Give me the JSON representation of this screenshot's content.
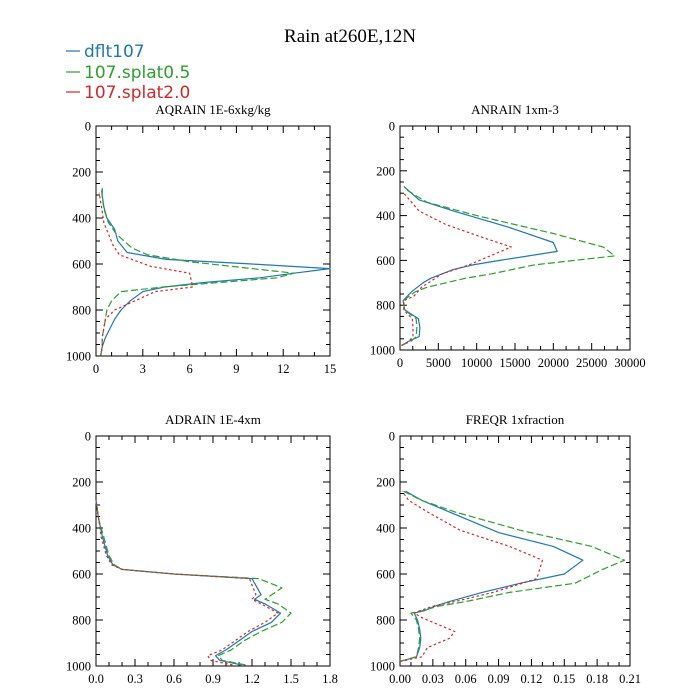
{
  "figure_title": "Rain at260E,12N",
  "legend": [
    {
      "label": "dflt107",
      "color": "#1f77b4",
      "dash": "solid"
    },
    {
      "label": "107.splat0.5",
      "color": "#2ca02c",
      "dash": "dashed"
    },
    {
      "label": "107.splat2.0",
      "color": "#d62728",
      "dash": "dotted"
    }
  ],
  "chart_data": [
    {
      "type": "line",
      "title": "AQRAIN 1E-6xkg/kg",
      "xlabel": "",
      "ylabel": "",
      "xlim": [
        0,
        15
      ],
      "ylim": [
        1000,
        0
      ],
      "xticks": [
        "0",
        "3",
        "6",
        "9",
        "12",
        "15"
      ],
      "xtick_values": [
        0,
        3,
        6,
        9,
        12,
        15
      ],
      "yticks": [
        "0",
        "200",
        "400",
        "600",
        "800",
        "1000"
      ],
      "ytick_values": [
        0,
        200,
        400,
        600,
        800,
        1000
      ],
      "series": [
        {
          "name": "dflt107",
          "x": [
            0.3,
            0.4,
            0.6,
            0.9,
            1.2,
            1.6,
            2.2,
            3.0,
            4.4,
            7.0,
            10.5,
            12.7,
            15.0,
            10.0,
            4.5,
            2.0,
            1.4,
            1.2,
            0.7,
            0.5,
            0.4,
            0.4
          ],
          "y": [
            1000,
            960,
            920,
            880,
            840,
            800,
            760,
            720,
            700,
            680,
            660,
            640,
            620,
            600,
            580,
            550,
            500,
            450,
            400,
            350,
            300,
            270
          ]
        },
        {
          "name": "107.splat0.5",
          "x": [
            0.3,
            0.4,
            0.4,
            0.5,
            0.6,
            0.7,
            1.0,
            1.6,
            4.3,
            8.0,
            11.6,
            12.7,
            10.0,
            6.0,
            3.3,
            2.3,
            1.3,
            0.8,
            0.5,
            0.35
          ],
          "y": [
            1000,
            960,
            920,
            880,
            840,
            800,
            760,
            720,
            700,
            680,
            660,
            640,
            620,
            590,
            560,
            530,
            470,
            420,
            360,
            280
          ]
        },
        {
          "name": "107.splat2.0",
          "x": [
            0.3,
            0.4,
            0.4,
            0.5,
            0.6,
            1.2,
            2.5,
            3.8,
            6.2,
            6.0,
            3.5,
            1.5,
            1.1,
            0.8,
            0.5,
            0.4,
            0.2
          ],
          "y": [
            1000,
            960,
            920,
            880,
            840,
            800,
            760,
            720,
            700,
            640,
            610,
            560,
            520,
            470,
            420,
            370,
            290
          ]
        }
      ]
    },
    {
      "type": "line",
      "title": "ANRAIN 1xm-3",
      "xlabel": "",
      "ylabel": "",
      "xlim": [
        0,
        30000
      ],
      "ylim": [
        1000,
        0
      ],
      "xticks": [
        "0",
        "5000",
        "10000",
        "15000",
        "20000",
        "25000",
        "30000"
      ],
      "xtick_values": [
        0,
        5000,
        10000,
        15000,
        20000,
        25000,
        30000
      ],
      "yticks": [
        "0",
        "200",
        "400",
        "600",
        "800",
        "1000"
      ],
      "ytick_values": [
        0,
        200,
        400,
        600,
        800,
        1000
      ],
      "series": [
        {
          "name": "dflt107",
          "x": [
            200,
            1200,
            2500,
            2600,
            2400,
            1500,
            600,
            400,
            1500,
            3000,
            4000,
            5500,
            7000,
            9500,
            13000,
            20500,
            20000,
            14000,
            7000,
            2500,
            500
          ],
          "y": [
            980,
            960,
            940,
            900,
            860,
            840,
            820,
            780,
            740,
            700,
            680,
            660,
            640,
            620,
            600,
            560,
            520,
            450,
            380,
            330,
            270
          ]
        },
        {
          "name": "107.splat0.5",
          "x": [
            200,
            1500,
            2100,
            2200,
            2100,
            1300,
            600,
            400,
            2000,
            3500,
            6000,
            8500,
            12000,
            17500,
            28000,
            26500,
            20000,
            10000,
            3500,
            600
          ],
          "y": [
            980,
            960,
            940,
            900,
            860,
            840,
            820,
            780,
            740,
            720,
            700,
            680,
            660,
            620,
            580,
            540,
            480,
            400,
            340,
            280
          ]
        },
        {
          "name": "107.splat2.0",
          "x": [
            200,
            1200,
            1700,
            1700,
            1600,
            1000,
            500,
            500,
            1800,
            2800,
            3700,
            5500,
            9000,
            14500,
            11000,
            6000,
            2500,
            500
          ],
          "y": [
            980,
            960,
            940,
            900,
            860,
            840,
            820,
            780,
            760,
            720,
            700,
            660,
            620,
            540,
            500,
            440,
            380,
            300
          ]
        }
      ]
    },
    {
      "type": "line",
      "title": "ADRAIN 1E-4xm",
      "xlabel": "",
      "ylabel": "",
      "xlim": [
        0,
        1.8
      ],
      "ylim": [
        1000,
        0
      ],
      "xticks": [
        "0.0",
        "0.3",
        "0.6",
        "0.9",
        "1.2",
        "1.5",
        "1.8"
      ],
      "xtick_values": [
        0,
        0.3,
        0.6,
        0.9,
        1.2,
        1.5,
        1.8
      ],
      "yticks": [
        "0",
        "200",
        "400",
        "600",
        "800",
        "1000"
      ],
      "ytick_values": [
        0,
        200,
        400,
        600,
        800,
        1000
      ],
      "series": [
        {
          "name": "dflt107",
          "x": [
            1.12,
            0.95,
            0.92,
            1.0,
            1.1,
            1.2,
            1.35,
            1.42,
            1.3,
            1.22,
            1.27,
            1.2,
            0.6,
            0.2,
            0.13,
            0.09,
            0.05,
            0.02,
            0.0
          ],
          "y": [
            995,
            975,
            955,
            930,
            890,
            850,
            810,
            770,
            730,
            710,
            690,
            620,
            600,
            580,
            560,
            520,
            440,
            360,
            280
          ]
        },
        {
          "name": "107.splat0.5",
          "x": [
            1.15,
            0.97,
            0.94,
            1.04,
            1.14,
            1.27,
            1.43,
            1.5,
            1.4,
            1.3,
            1.43,
            1.25,
            0.6,
            0.2,
            0.14,
            0.1,
            0.06,
            0.02,
            0.0
          ],
          "y": [
            995,
            975,
            955,
            930,
            890,
            850,
            810,
            770,
            730,
            710,
            660,
            620,
            600,
            580,
            560,
            520,
            440,
            360,
            280
          ]
        },
        {
          "name": "107.splat2.0",
          "x": [
            1.05,
            0.88,
            0.86,
            0.97,
            1.07,
            1.17,
            1.3,
            1.4,
            1.27,
            1.2,
            1.23,
            1.18,
            0.6,
            0.2,
            0.12,
            0.08,
            0.04,
            0.02,
            0.0
          ],
          "y": [
            995,
            975,
            955,
            930,
            890,
            850,
            810,
            770,
            730,
            710,
            690,
            620,
            600,
            580,
            560,
            520,
            440,
            360,
            280
          ]
        }
      ]
    },
    {
      "type": "line",
      "title": "FREQR 1xfraction",
      "xlabel": "",
      "ylabel": "",
      "xlim": [
        0,
        0.21
      ],
      "ylim": [
        1000,
        0
      ],
      "xticks": [
        "0.00",
        "0.03",
        "0.06",
        "0.09",
        "0.12",
        "0.15",
        "0.18",
        "0.21"
      ],
      "xtick_values": [
        0,
        0.03,
        0.06,
        0.09,
        0.12,
        0.15,
        0.18,
        0.21
      ],
      "yticks": [
        "0",
        "200",
        "400",
        "600",
        "800",
        "1000"
      ],
      "ytick_values": [
        0,
        200,
        400,
        600,
        800,
        1000
      ],
      "series": [
        {
          "name": "dflt107",
          "x": [
            0.0,
            0.015,
            0.018,
            0.019,
            0.018,
            0.016,
            0.013,
            0.022,
            0.032,
            0.045,
            0.075,
            0.11,
            0.15,
            0.167,
            0.14,
            0.09,
            0.045,
            0.02,
            0.005
          ],
          "y": [
            980,
            960,
            920,
            880,
            840,
            800,
            770,
            760,
            740,
            720,
            680,
            640,
            600,
            540,
            480,
            420,
            330,
            280,
            240
          ]
        },
        {
          "name": "107.splat0.5",
          "x": [
            0.0,
            0.015,
            0.017,
            0.018,
            0.017,
            0.015,
            0.01,
            0.02,
            0.035,
            0.06,
            0.1,
            0.16,
            0.185,
            0.205,
            0.175,
            0.11,
            0.05,
            0.02,
            0.003
          ],
          "y": [
            980,
            960,
            920,
            880,
            840,
            800,
            770,
            760,
            740,
            720,
            680,
            640,
            580,
            540,
            480,
            410,
            330,
            280,
            240
          ]
        },
        {
          "name": "107.splat2.0",
          "x": [
            0.0,
            0.02,
            0.025,
            0.045,
            0.05,
            0.035,
            0.02,
            0.013,
            0.018,
            0.03,
            0.05,
            0.085,
            0.125,
            0.13,
            0.1,
            0.055,
            0.025,
            0.008,
            0.002
          ],
          "y": [
            980,
            960,
            920,
            880,
            850,
            820,
            790,
            770,
            760,
            740,
            720,
            680,
            620,
            540,
            480,
            410,
            330,
            280,
            240
          ]
        }
      ]
    }
  ]
}
